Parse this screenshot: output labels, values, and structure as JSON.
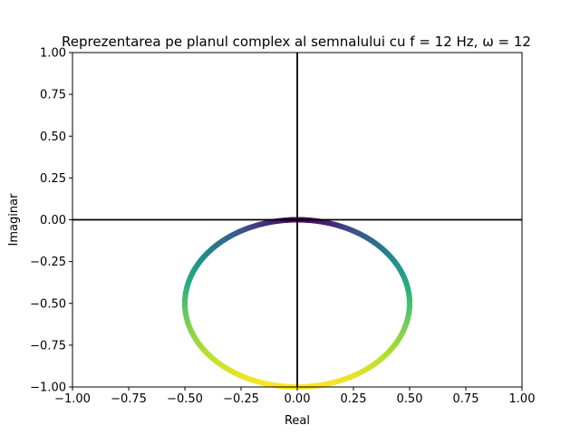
{
  "chart_data": {
    "type": "scatter",
    "title": "Reprezentarea pe planul complex al semnalului cu f = 12 Hz, ω = 12",
    "xlabel": "Real",
    "ylabel": "Imaginar",
    "xlim": [
      -1.0,
      1.0
    ],
    "ylim": [
      -1.0,
      1.0
    ],
    "xticks": [
      "−1.00",
      "−0.75",
      "−0.50",
      "−0.25",
      "0.00",
      "0.25",
      "0.50",
      "0.75",
      "1.00"
    ],
    "yticks": [
      "−1.00",
      "−0.75",
      "−0.50",
      "−0.25",
      "0.00",
      "0.25",
      "0.50",
      "0.75",
      "1.00"
    ],
    "grid": false,
    "reference_lines": {
      "x": 0,
      "y": 0,
      "color": "#000000"
    },
    "series": [
      {
        "shape": "circle",
        "center": [
          0.0,
          -0.5
        ],
        "radius": 0.5,
        "colormap": "viridis",
        "color_by": "distance from origin",
        "colors": {
          "near_origin": "#440154",
          "mid": "#21918c",
          "far": "#fde725"
        }
      }
    ]
  }
}
